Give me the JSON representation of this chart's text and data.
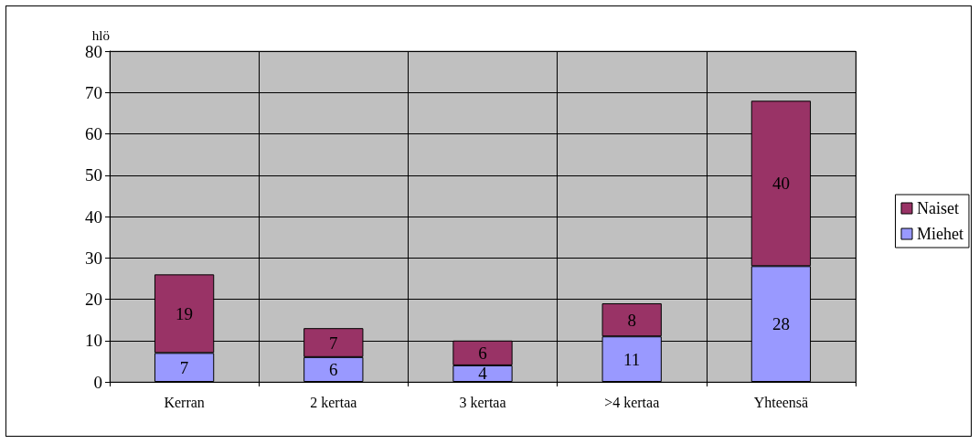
{
  "chart_data": {
    "type": "bar",
    "ylabel": "hlö",
    "categories": [
      "Kerran",
      "2 kertaa",
      "3 kertaa",
      ">4 kertaa",
      "Yhteensä"
    ],
    "series": [
      {
        "name": "Miehet",
        "color": "#9999ff",
        "values": [
          7,
          6,
          4,
          11,
          28
        ]
      },
      {
        "name": "Naiset",
        "color": "#993366",
        "values": [
          19,
          7,
          6,
          8,
          40
        ]
      }
    ],
    "stacked": true,
    "data_labels": true,
    "ylim": [
      0,
      80
    ],
    "yticks": [
      0,
      10,
      20,
      30,
      40,
      50,
      60,
      70,
      80
    ],
    "grid": true,
    "legend": "right"
  }
}
